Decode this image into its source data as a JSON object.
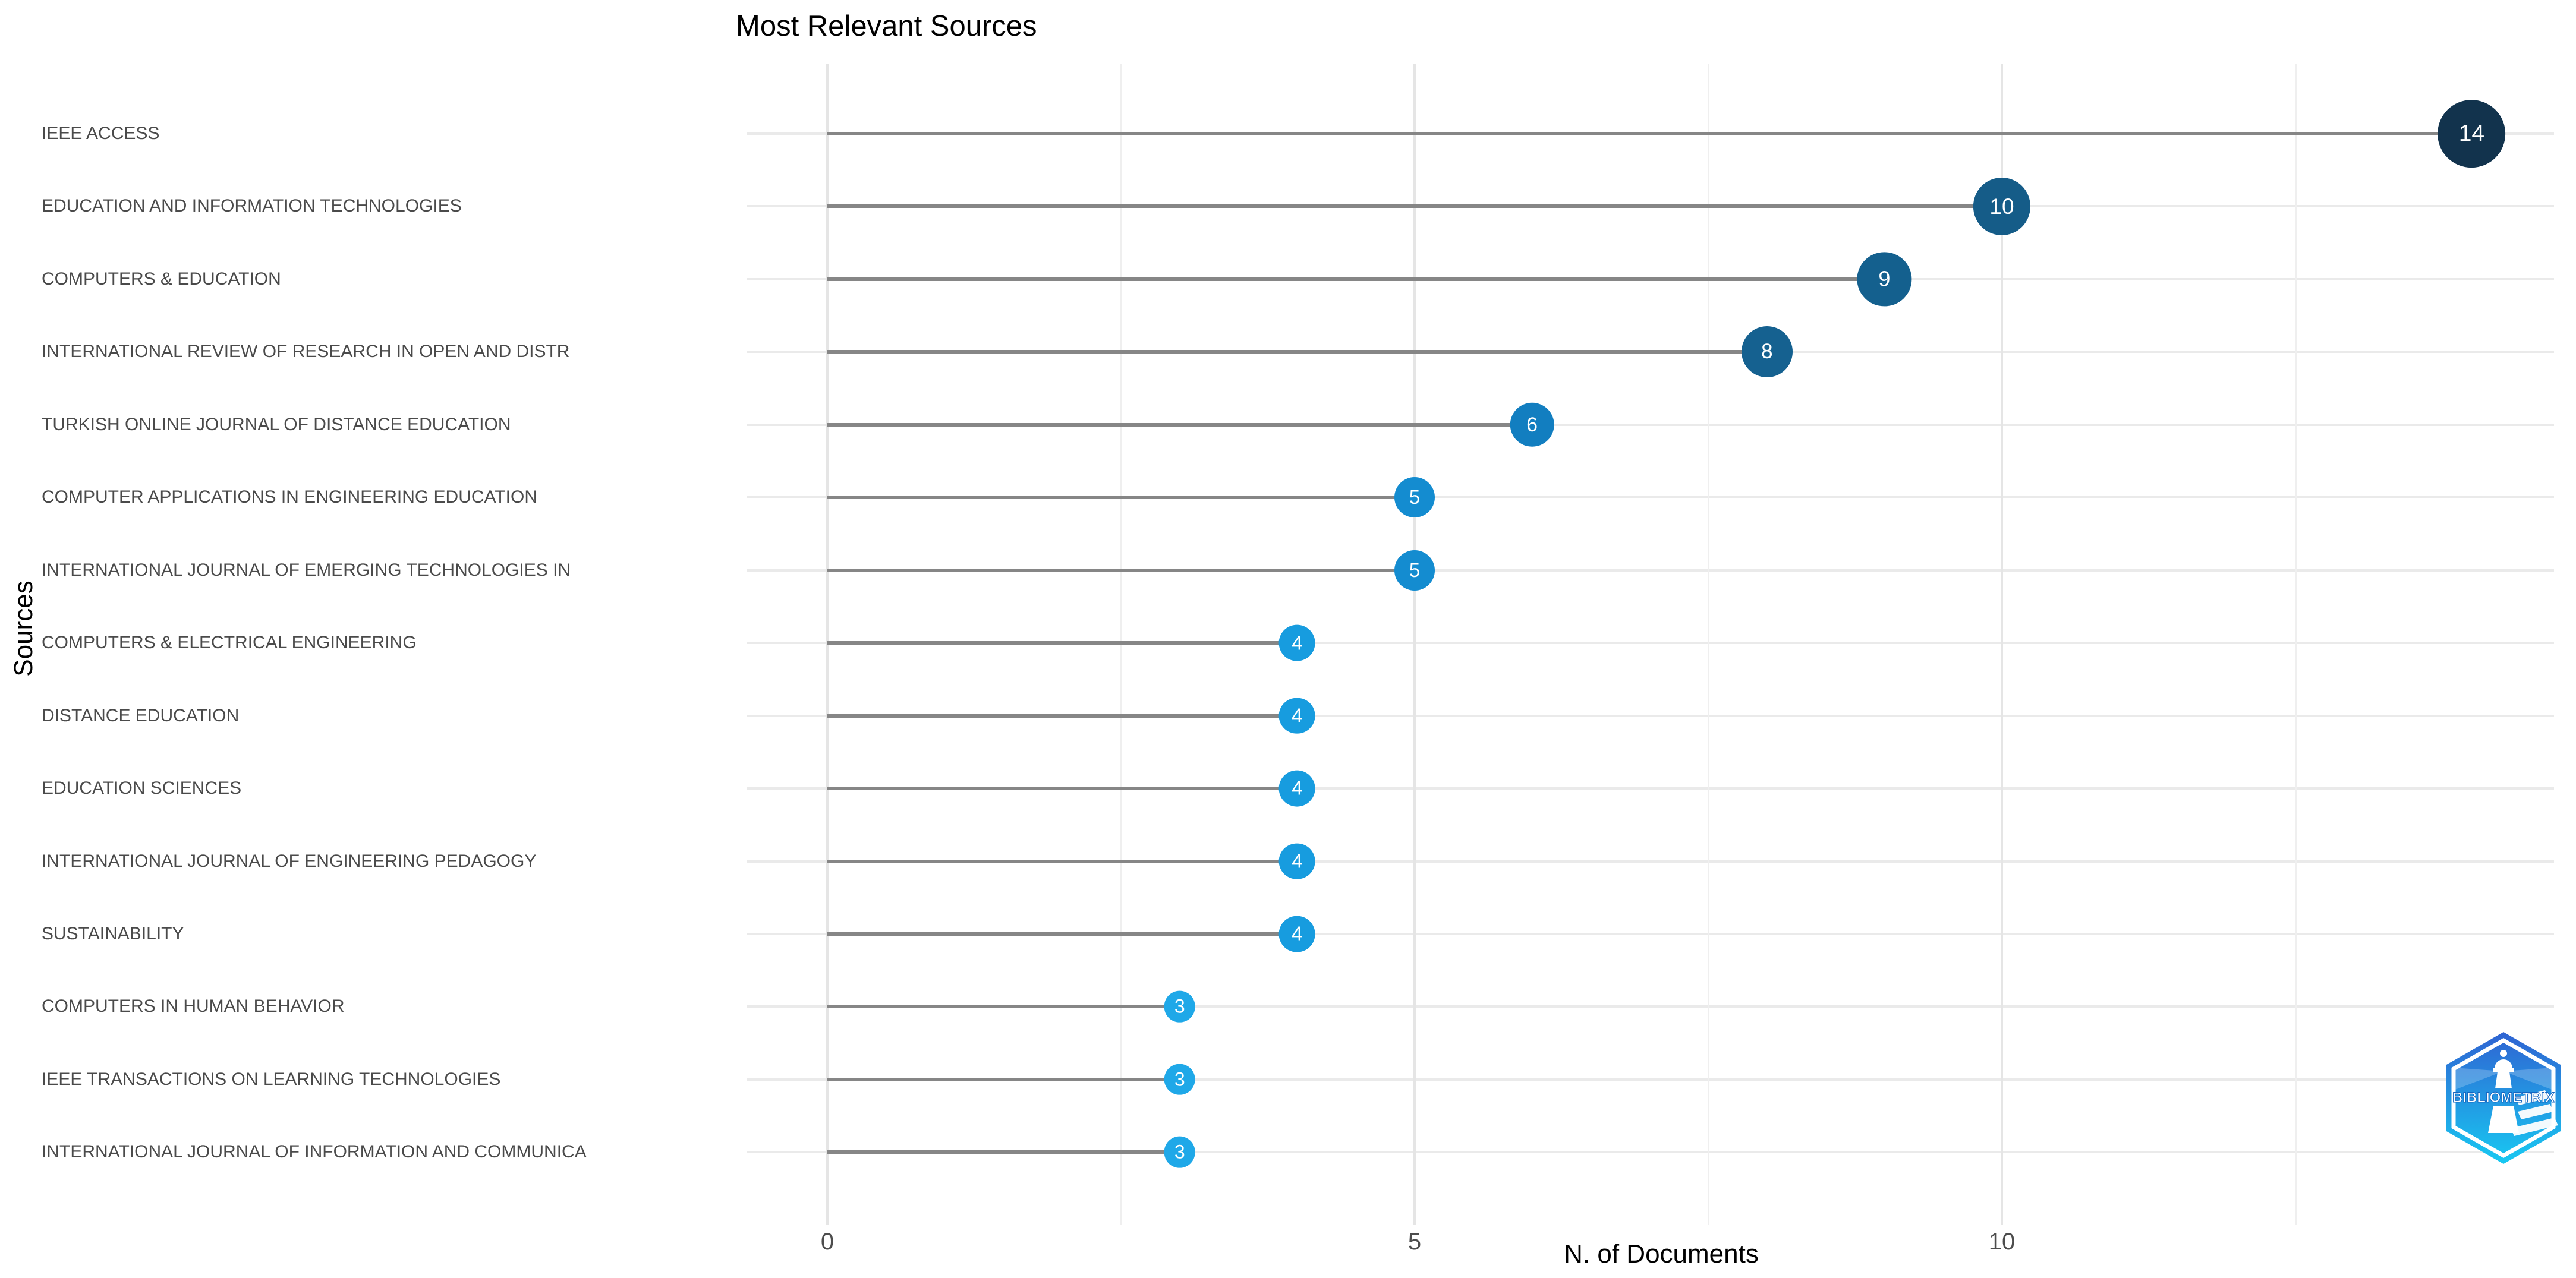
{
  "title": "Most Relevant Sources",
  "axes": {
    "x_title": "N. of Documents",
    "y_title": "Sources",
    "x_tick_labels": [
      "0",
      "5",
      "10"
    ]
  },
  "logo": {
    "label": "BIBLIOMETRIX"
  },
  "chart_data": {
    "type": "bar",
    "style": "horizontal-lollipop",
    "title": "Most Relevant Sources",
    "xlabel": "N. of Documents",
    "ylabel": "Sources",
    "categories": [
      "IEEE ACCESS",
      "EDUCATION AND INFORMATION TECHNOLOGIES",
      "COMPUTERS & EDUCATION",
      "INTERNATIONAL REVIEW OF RESEARCH IN OPEN AND DISTR",
      "TURKISH ONLINE JOURNAL OF DISTANCE EDUCATION",
      "COMPUTER APPLICATIONS IN ENGINEERING EDUCATION",
      "INTERNATIONAL JOURNAL OF EMERGING TECHNOLOGIES IN",
      "COMPUTERS & ELECTRICAL ENGINEERING",
      "DISTANCE EDUCATION",
      "EDUCATION SCIENCES",
      "INTERNATIONAL JOURNAL OF ENGINEERING PEDAGOGY",
      "SUSTAINABILITY",
      "COMPUTERS IN HUMAN BEHAVIOR",
      "IEEE TRANSACTIONS ON LEARNING TECHNOLOGIES",
      "INTERNATIONAL JOURNAL OF INFORMATION AND COMMUNICA"
    ],
    "values": [
      14,
      10,
      9,
      8,
      6,
      5,
      5,
      4,
      4,
      4,
      4,
      4,
      3,
      3,
      3
    ],
    "point_colors": [
      "#12334D",
      "#155C88",
      "#14608E",
      "#156190",
      "#127EC0",
      "#148CD0",
      "#148CD0",
      "#179CDF",
      "#179CDF",
      "#179CDF",
      "#179CDF",
      "#179CDF",
      "#1FA8E8",
      "#1FA8E8",
      "#1FA8E8"
    ],
    "xlim": [
      0,
      14.7
    ],
    "xticks": [
      0,
      5,
      10
    ],
    "x_gridlines_major": [
      0,
      5,
      10
    ],
    "x_gridlines_minor": [
      2.5,
      7.5,
      12.5
    ],
    "grid": true,
    "legend": "none",
    "stem_color": "#868686",
    "grid_color": "#eaeaea",
    "label_color": "#4a4a4a"
  }
}
